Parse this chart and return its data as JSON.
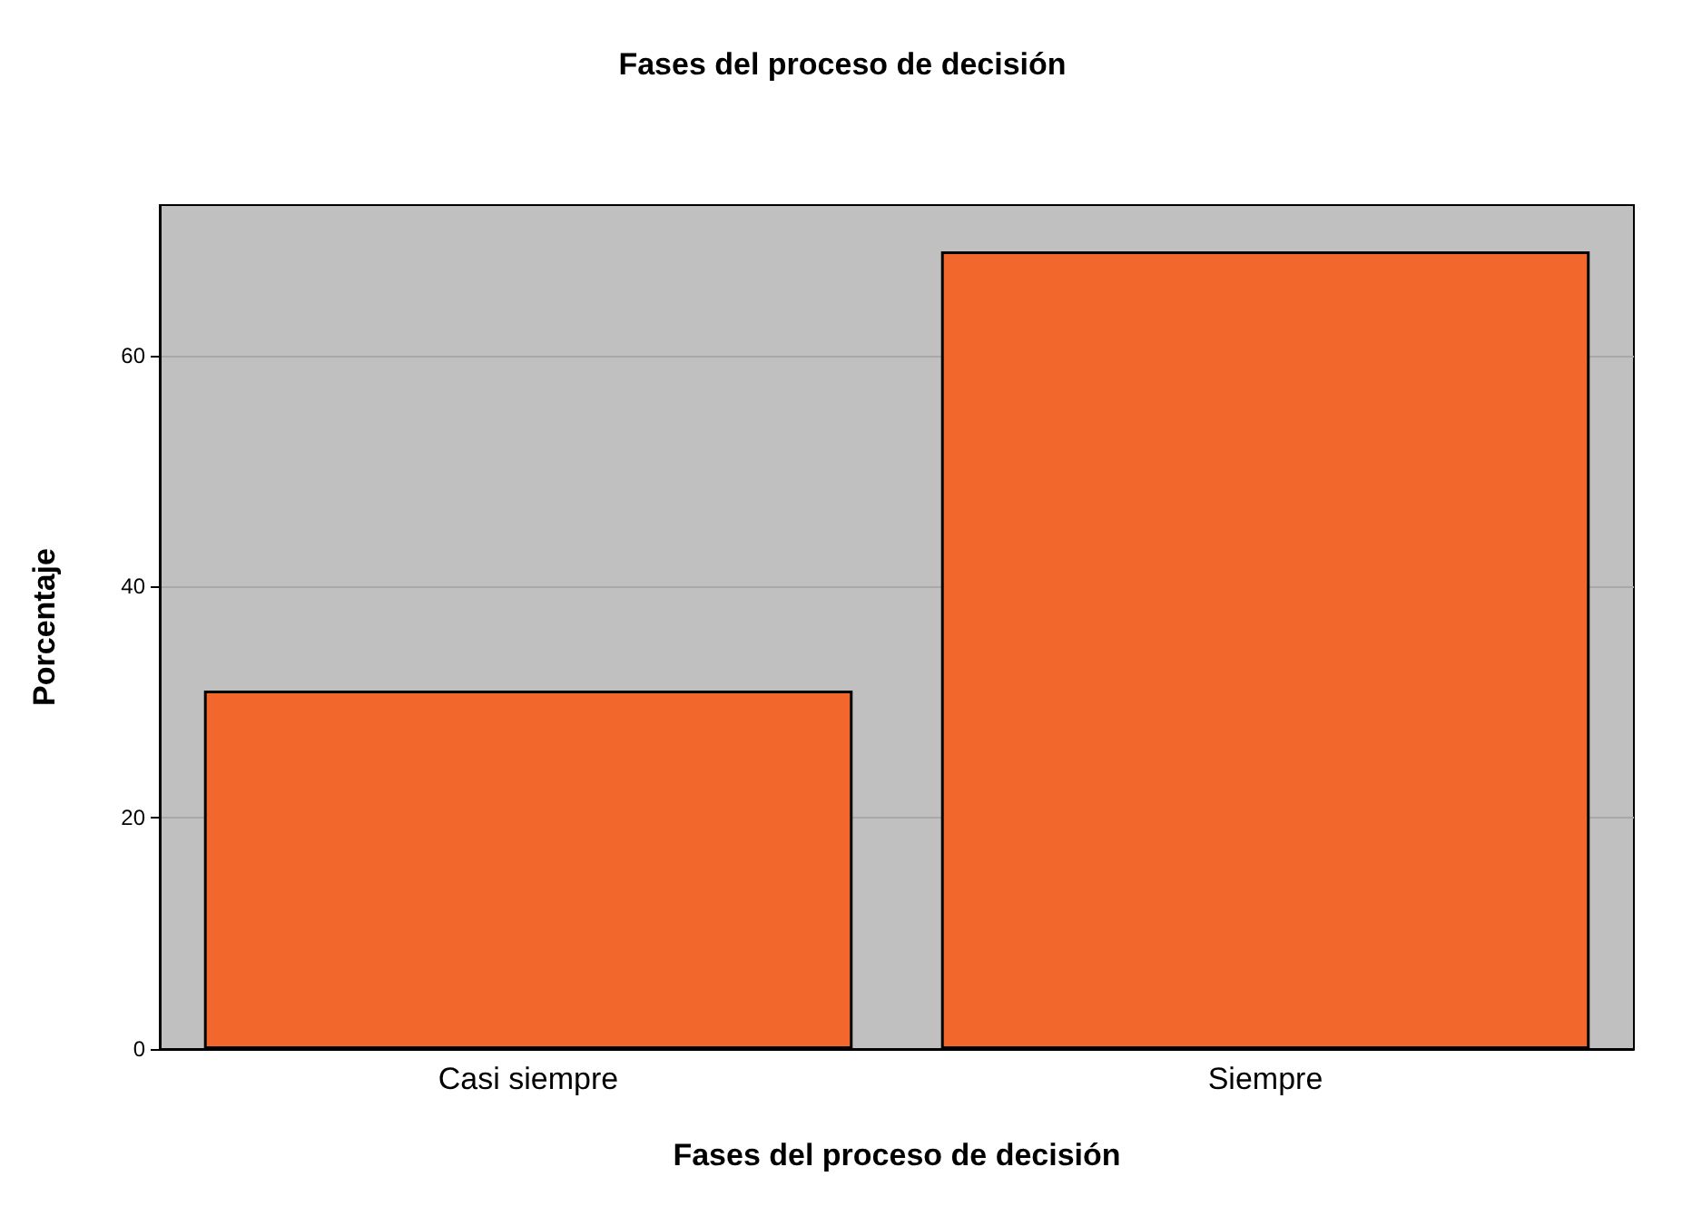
{
  "chart_data": {
    "type": "bar",
    "title": "Fases del proceso de decisión",
    "xlabel": "Fases del proceso de decisión",
    "ylabel": "Porcentaje",
    "categories": [
      "Casi siempre",
      "Siempre"
    ],
    "values": [
      31,
      69
    ],
    "color": "#f2682c",
    "ylim": [
      0,
      73
    ],
    "yticks": [
      0,
      20,
      40,
      60
    ],
    "grid": "y"
  }
}
